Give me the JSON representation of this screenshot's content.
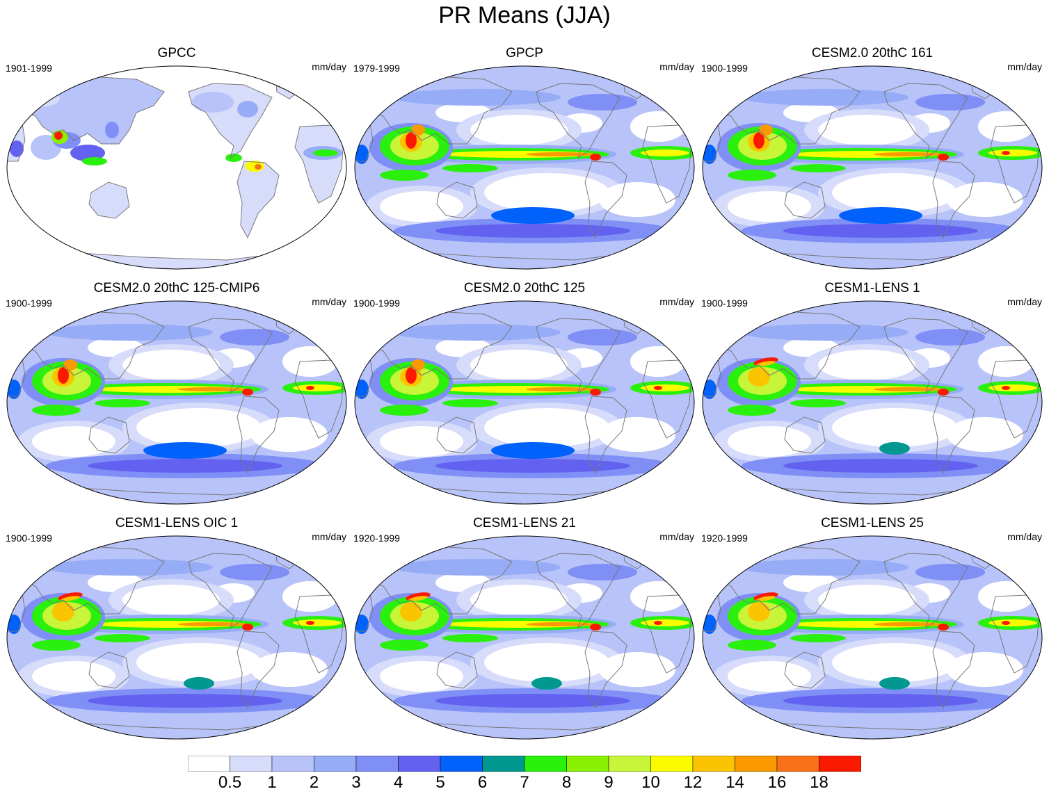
{
  "title": "PR Means (JJA)",
  "units": "mm/day",
  "colorbar": {
    "colors": [
      "#ffffff",
      "#d7dcfb",
      "#b8c3f9",
      "#96acf6",
      "#7f8ff5",
      "#6362f0",
      "#0061fb",
      "#00988f",
      "#29f00c",
      "#88f000",
      "#c8f537",
      "#fbfb00",
      "#fbc400",
      "#fb9a00",
      "#f97117",
      "#fb1a00"
    ],
    "labels": [
      "0.5",
      "1",
      "2",
      "3",
      "4",
      "5",
      "6",
      "7",
      "8",
      "9",
      "10",
      "12",
      "14",
      "16",
      "18"
    ]
  },
  "panels": [
    {
      "title": "GPCC",
      "period": "1901-1999",
      "variant": "gpcc"
    },
    {
      "title": "GPCP",
      "period": "1979-1999",
      "variant": "gpcp"
    },
    {
      "title": "CESM2.0 20thC 161",
      "period": "1900-1999",
      "variant": "cesm2"
    },
    {
      "title": "CESM2.0 20thC 125-CMIP6",
      "period": "1900-1999",
      "variant": "cesm2"
    },
    {
      "title": "CESM2.0 20thC 125",
      "period": "1900-1999",
      "variant": "cesm2"
    },
    {
      "title": "CESM1-LENS 1",
      "period": "1900-1999",
      "variant": "cesm1"
    },
    {
      "title": "CESM1-LENS OIC 1",
      "period": "1900-1999",
      "variant": "cesm1"
    },
    {
      "title": "CESM1-LENS 21",
      "period": "1920-1999",
      "variant": "cesm1"
    },
    {
      "title": "CESM1-LENS 25",
      "period": "1920-1999",
      "variant": "cesm1"
    }
  ]
}
